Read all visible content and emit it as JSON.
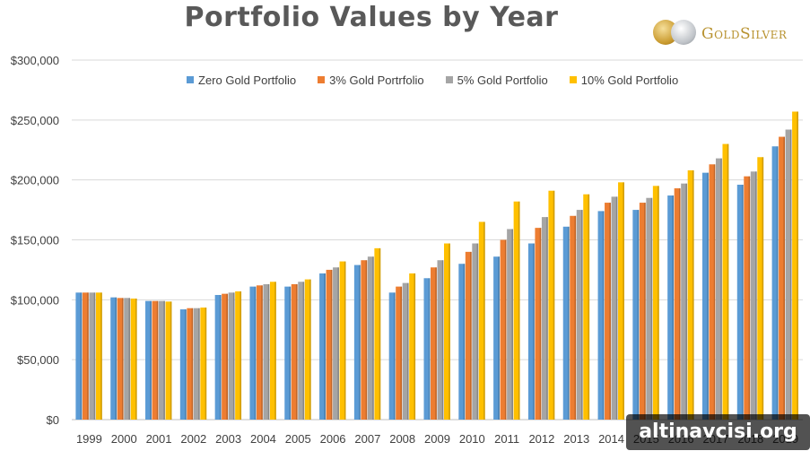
{
  "chart_data": {
    "type": "bar",
    "title": "Portfolio Values by Year",
    "categories": [
      "1999",
      "2000",
      "2001",
      "2002",
      "2003",
      "2004",
      "2005",
      "2006",
      "2007",
      "2008",
      "2009",
      "2010",
      "2011",
      "2012",
      "2013",
      "2014",
      "2015",
      "2016",
      "2017",
      "2018",
      "2019"
    ],
    "series": [
      {
        "name": "Zero Gold Portfolio",
        "color": "#5b9bd5",
        "values": [
          106000,
          102000,
          99000,
          92000,
          104000,
          111000,
          111000,
          122000,
          129000,
          106000,
          118000,
          130000,
          136000,
          147000,
          161000,
          174000,
          175000,
          187000,
          206000,
          196000,
          228000
        ]
      },
      {
        "name": "3% Gold Portrfolio",
        "color": "#ed7d31",
        "values": [
          106000,
          101500,
          99000,
          93000,
          105000,
          112000,
          113000,
          125000,
          133000,
          111000,
          127000,
          140000,
          150000,
          160000,
          170000,
          181000,
          181000,
          193000,
          213000,
          203000,
          236000
        ]
      },
      {
        "name": "5% Gold Portfolio",
        "color": "#a5a5a5",
        "values": [
          106000,
          101500,
          99000,
          93000,
          106000,
          113000,
          115000,
          127000,
          136000,
          114000,
          133000,
          147000,
          159000,
          169000,
          175000,
          186000,
          185000,
          197000,
          218000,
          207000,
          242000
        ]
      },
      {
        "name": "10% Gold Portfolio",
        "color": "#ffc000",
        "values": [
          106000,
          101000,
          98500,
          93500,
          107000,
          115000,
          117000,
          132000,
          143000,
          122000,
          147000,
          165000,
          182000,
          191000,
          188000,
          198000,
          195000,
          208000,
          230000,
          219000,
          257000
        ]
      }
    ],
    "xlabel": "",
    "ylabel": "",
    "ylim": [
      0,
      300000
    ],
    "yticks": [
      "$0",
      "$50,000",
      "$100,000",
      "$150,000",
      "$200,000",
      "$250,000",
      "$300,000"
    ],
    "grid": true,
    "legend_position": "top"
  },
  "logo": {
    "brand": "GoldSilver"
  },
  "watermark": "altinavcisi.org"
}
